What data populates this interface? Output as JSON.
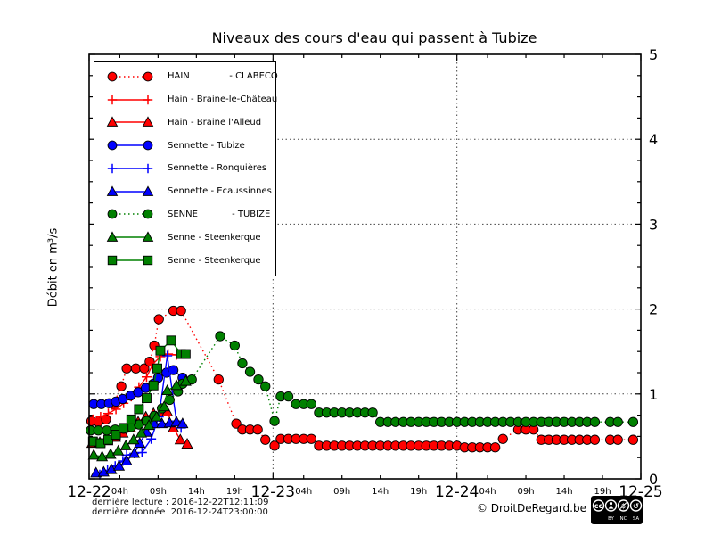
{
  "title": "Niveaux des cours d'eau qui passent à Tubize",
  "ylabel": "Débit en m³/s",
  "footer": {
    "last_reading": "dernière lecture : 2016-12-22T12:11:09",
    "last_data": "dernière donnée  2016-12-24T23:00:00",
    "copyright": "© DroitDeRegard.be",
    "cc_badge": {
      "cc_text": "cc",
      "labels": [
        "BY",
        "NC",
        "SA"
      ]
    }
  },
  "chart_data": {
    "type": "line",
    "title": "Niveaux des cours d'eau qui passent à Tubize",
    "xlabel": "",
    "ylabel": "Débit en m³/s",
    "x_unit": "hours since 2016-12-22 00:00",
    "xlim_hours": [
      0,
      72
    ],
    "ylim": [
      0,
      5
    ],
    "yticks": [
      0,
      1,
      2,
      3,
      4,
      5
    ],
    "y_minor_step": 0.25,
    "grid": "dotted horizontal at y=1..4, dotted vertical at day boundaries",
    "legend_position": "upper left",
    "day_ticks": [
      {
        "hour": 0,
        "label": "12-22"
      },
      {
        "hour": 24,
        "label": "12-23"
      },
      {
        "hour": 48,
        "label": "12-24"
      },
      {
        "hour": 72,
        "label": "12-25"
      }
    ],
    "hour_ticks": [
      {
        "hour": 4,
        "label": "04h"
      },
      {
        "hour": 9,
        "label": "09h"
      },
      {
        "hour": 14,
        "label": "14h"
      },
      {
        "hour": 19,
        "label": "19h"
      },
      {
        "hour": 28,
        "label": "04h"
      },
      {
        "hour": 33,
        "label": "09h"
      },
      {
        "hour": 38,
        "label": "14h"
      },
      {
        "hour": 43,
        "label": "19h"
      },
      {
        "hour": 52,
        "label": "04h"
      },
      {
        "hour": 57,
        "label": "09h"
      },
      {
        "hour": 62,
        "label": "14h"
      },
      {
        "hour": 67,
        "label": "19h"
      }
    ],
    "series": [
      {
        "name": "HAIN              - CLABECQ",
        "color": "#ff0000",
        "marker": "circle",
        "line": "dotted",
        "points": [
          [
            0.3,
            0.68
          ],
          [
            1.2,
            0.67
          ],
          [
            2.2,
            0.7
          ],
          [
            3.2,
            0.88
          ],
          [
            4.2,
            1.09
          ],
          [
            4.9,
            1.3
          ],
          [
            6.1,
            1.3
          ],
          [
            7.2,
            1.3
          ],
          [
            7.9,
            1.38
          ],
          [
            8.5,
            1.57
          ],
          [
            9.1,
            1.88
          ],
          [
            11,
            1.98
          ],
          [
            12,
            1.98
          ],
          [
            16.9,
            1.17
          ],
          [
            19.2,
            0.65
          ],
          [
            20,
            0.58
          ],
          [
            21,
            0.58
          ],
          [
            22,
            0.58
          ],
          [
            23,
            0.46
          ],
          [
            24.2,
            0.39
          ],
          [
            25,
            0.47
          ],
          [
            26,
            0.47
          ],
          [
            27,
            0.47
          ],
          [
            28,
            0.47
          ],
          [
            29,
            0.47
          ],
          [
            30,
            0.39
          ],
          [
            31,
            0.39
          ],
          [
            32,
            0.39
          ],
          [
            33,
            0.39
          ],
          [
            34,
            0.39
          ],
          [
            35,
            0.39
          ],
          [
            36,
            0.39
          ],
          [
            37,
            0.39
          ],
          [
            38,
            0.39
          ],
          [
            39,
            0.39
          ],
          [
            40,
            0.39
          ],
          [
            41,
            0.39
          ],
          [
            42,
            0.39
          ],
          [
            43,
            0.39
          ],
          [
            44,
            0.39
          ],
          [
            45,
            0.39
          ],
          [
            46,
            0.39
          ],
          [
            47,
            0.39
          ],
          [
            48,
            0.39
          ],
          [
            49,
            0.37
          ],
          [
            50,
            0.37
          ],
          [
            51,
            0.37
          ],
          [
            52,
            0.37
          ],
          [
            53,
            0.37
          ],
          [
            54,
            0.47
          ],
          [
            56,
            0.58
          ],
          [
            57,
            0.58
          ],
          [
            58,
            0.58
          ],
          [
            59,
            0.46
          ],
          [
            60,
            0.46
          ],
          [
            61,
            0.46
          ],
          [
            62,
            0.46
          ],
          [
            63,
            0.46
          ],
          [
            64,
            0.46
          ],
          [
            65,
            0.46
          ],
          [
            66,
            0.46
          ],
          [
            68,
            0.46
          ],
          [
            69,
            0.46
          ],
          [
            71,
            0.46
          ]
        ]
      },
      {
        "name": "Hain - Braine-le-Château",
        "color": "#ff0000",
        "marker": "plus",
        "line": "solid",
        "points": [
          [
            0.5,
            0.7
          ],
          [
            1.5,
            0.73
          ],
          [
            2.5,
            0.77
          ],
          [
            3.5,
            0.82
          ],
          [
            4.5,
            0.89
          ],
          [
            5.5,
            0.97
          ],
          [
            6.5,
            1.08
          ],
          [
            7.5,
            1.2
          ],
          [
            8.3,
            1.35
          ],
          [
            9.3,
            1.44
          ],
          [
            10.3,
            1.47
          ],
          [
            11.4,
            1.46
          ]
        ]
      },
      {
        "name": "Hain - Braine l'Alleud",
        "color": "#ff0000",
        "marker": "triangle",
        "line": "solid",
        "points": [
          [
            0.4,
            0.42
          ],
          [
            1.4,
            0.43
          ],
          [
            2.4,
            0.45
          ],
          [
            3.4,
            0.49
          ],
          [
            4.4,
            0.54
          ],
          [
            5.4,
            0.6
          ],
          [
            6.4,
            0.67
          ],
          [
            7.4,
            0.73
          ],
          [
            8.4,
            0.77
          ],
          [
            9.4,
            0.79
          ],
          [
            10.2,
            0.79
          ],
          [
            11,
            0.6
          ],
          [
            11.9,
            0.46
          ],
          [
            12.8,
            0.41
          ]
        ]
      },
      {
        "name": "Sennette - Tubize",
        "color": "#0000ff",
        "marker": "circle",
        "line": "solid",
        "points": [
          [
            0.6,
            0.88
          ],
          [
            1.6,
            0.88
          ],
          [
            2.6,
            0.89
          ],
          [
            3.5,
            0.91
          ],
          [
            4.4,
            0.94
          ],
          [
            5.4,
            0.98
          ],
          [
            6.4,
            1.02
          ],
          [
            7.4,
            1.07
          ],
          [
            8.4,
            1.12
          ],
          [
            9,
            1.19
          ],
          [
            10.1,
            1.25
          ],
          [
            11,
            1.28
          ],
          [
            12.2,
            1.19
          ]
        ]
      },
      {
        "name": "Sennette - Ronquières",
        "color": "#0000ff",
        "marker": "plus",
        "line": "solid",
        "points": [
          [
            1.4,
            0.05
          ],
          [
            2.4,
            0.1
          ],
          [
            3.4,
            0.15
          ],
          [
            4.4,
            0.21
          ],
          [
            4.9,
            0.28
          ],
          [
            5.9,
            0.3
          ],
          [
            6.9,
            0.31
          ],
          [
            8.1,
            0.47
          ],
          [
            9.1,
            0.73
          ],
          [
            10.2,
            1.45
          ],
          [
            11.4,
            0.68
          ],
          [
            12,
            0.6
          ]
        ]
      },
      {
        "name": "Sennette - Ecaussinnes",
        "color": "#0000ff",
        "marker": "triangle",
        "line": "solid",
        "points": [
          [
            0.9,
            0.07
          ],
          [
            1.9,
            0.08
          ],
          [
            2.9,
            0.11
          ],
          [
            3.9,
            0.15
          ],
          [
            4.9,
            0.21
          ],
          [
            5.9,
            0.3
          ],
          [
            6.6,
            0.42
          ],
          [
            7.5,
            0.55
          ],
          [
            8.5,
            0.65
          ],
          [
            9.5,
            0.65
          ],
          [
            10.5,
            0.66
          ],
          [
            11.4,
            0.67
          ],
          [
            12.2,
            0.65
          ]
        ]
      },
      {
        "name": "SENNE            - TUBIZE",
        "color": "#008000",
        "marker": "circle",
        "line": "dotted",
        "points": [
          [
            0.2,
            0.57
          ],
          [
            1.2,
            0.57
          ],
          [
            2.3,
            0.57
          ],
          [
            3.4,
            0.58
          ],
          [
            4.5,
            0.59
          ],
          [
            5.5,
            0.61
          ],
          [
            6.5,
            0.64
          ],
          [
            7.5,
            0.68
          ],
          [
            8.5,
            0.74
          ],
          [
            9.5,
            0.83
          ],
          [
            10.5,
            0.93
          ],
          [
            11.6,
            1.03
          ],
          [
            12.2,
            1.12
          ],
          [
            13.4,
            1.17
          ],
          [
            17.1,
            1.68
          ],
          [
            19,
            1.57
          ],
          [
            20,
            1.36
          ],
          [
            21,
            1.26
          ],
          [
            22.1,
            1.17
          ],
          [
            23,
            1.09
          ],
          [
            24.2,
            0.68
          ],
          [
            25,
            0.97
          ],
          [
            26,
            0.97
          ],
          [
            27,
            0.88
          ],
          [
            28,
            0.88
          ],
          [
            29,
            0.88
          ],
          [
            30,
            0.78
          ],
          [
            31,
            0.78
          ],
          [
            32,
            0.78
          ],
          [
            33,
            0.78
          ],
          [
            34,
            0.78
          ],
          [
            35,
            0.78
          ],
          [
            36,
            0.78
          ],
          [
            37,
            0.78
          ],
          [
            38,
            0.67
          ],
          [
            39,
            0.67
          ],
          [
            40,
            0.67
          ],
          [
            41,
            0.67
          ],
          [
            42,
            0.67
          ],
          [
            43,
            0.67
          ],
          [
            44,
            0.67
          ],
          [
            45,
            0.67
          ],
          [
            46,
            0.67
          ],
          [
            47,
            0.67
          ],
          [
            48,
            0.67
          ],
          [
            49,
            0.67
          ],
          [
            50,
            0.67
          ],
          [
            51,
            0.67
          ],
          [
            52,
            0.67
          ],
          [
            53,
            0.67
          ],
          [
            54,
            0.67
          ],
          [
            55,
            0.67
          ],
          [
            56,
            0.67
          ],
          [
            57,
            0.67
          ],
          [
            58,
            0.67
          ],
          [
            59,
            0.67
          ],
          [
            60,
            0.67
          ],
          [
            61,
            0.67
          ],
          [
            62,
            0.67
          ],
          [
            63,
            0.67
          ],
          [
            64,
            0.67
          ],
          [
            65,
            0.67
          ],
          [
            66,
            0.67
          ],
          [
            68,
            0.67
          ],
          [
            69,
            0.67
          ],
          [
            71,
            0.67
          ]
        ]
      },
      {
        "name": "Senne - Steenkerque",
        "color": "#008000",
        "marker": "triangle",
        "line": "solid",
        "points": [
          [
            0.6,
            0.28
          ],
          [
            1.7,
            0.26
          ],
          [
            2.8,
            0.29
          ],
          [
            3.8,
            0.33
          ],
          [
            4.8,
            0.39
          ],
          [
            5.8,
            0.46
          ],
          [
            6.8,
            0.54
          ],
          [
            7.8,
            0.63
          ],
          [
            8.8,
            0.73
          ],
          [
            9.8,
            0.85
          ],
          [
            10.2,
            1.04
          ],
          [
            11.4,
            1.1
          ],
          [
            12.6,
            1.15
          ]
        ]
      },
      {
        "name": "Senne - Steenkerque",
        "color": "#008000",
        "marker": "square",
        "line": "solid",
        "points": [
          [
            0.5,
            0.44
          ],
          [
            1.5,
            0.42
          ],
          [
            2.5,
            0.46
          ],
          [
            3.5,
            0.52
          ],
          [
            4.5,
            0.6
          ],
          [
            5.5,
            0.7
          ],
          [
            6.5,
            0.82
          ],
          [
            7.5,
            0.95
          ],
          [
            8.4,
            1.1
          ],
          [
            8.9,
            1.3
          ],
          [
            9.3,
            1.51
          ],
          [
            10.7,
            1.63
          ],
          [
            12,
            1.47
          ],
          [
            12.6,
            1.47
          ]
        ]
      }
    ]
  }
}
